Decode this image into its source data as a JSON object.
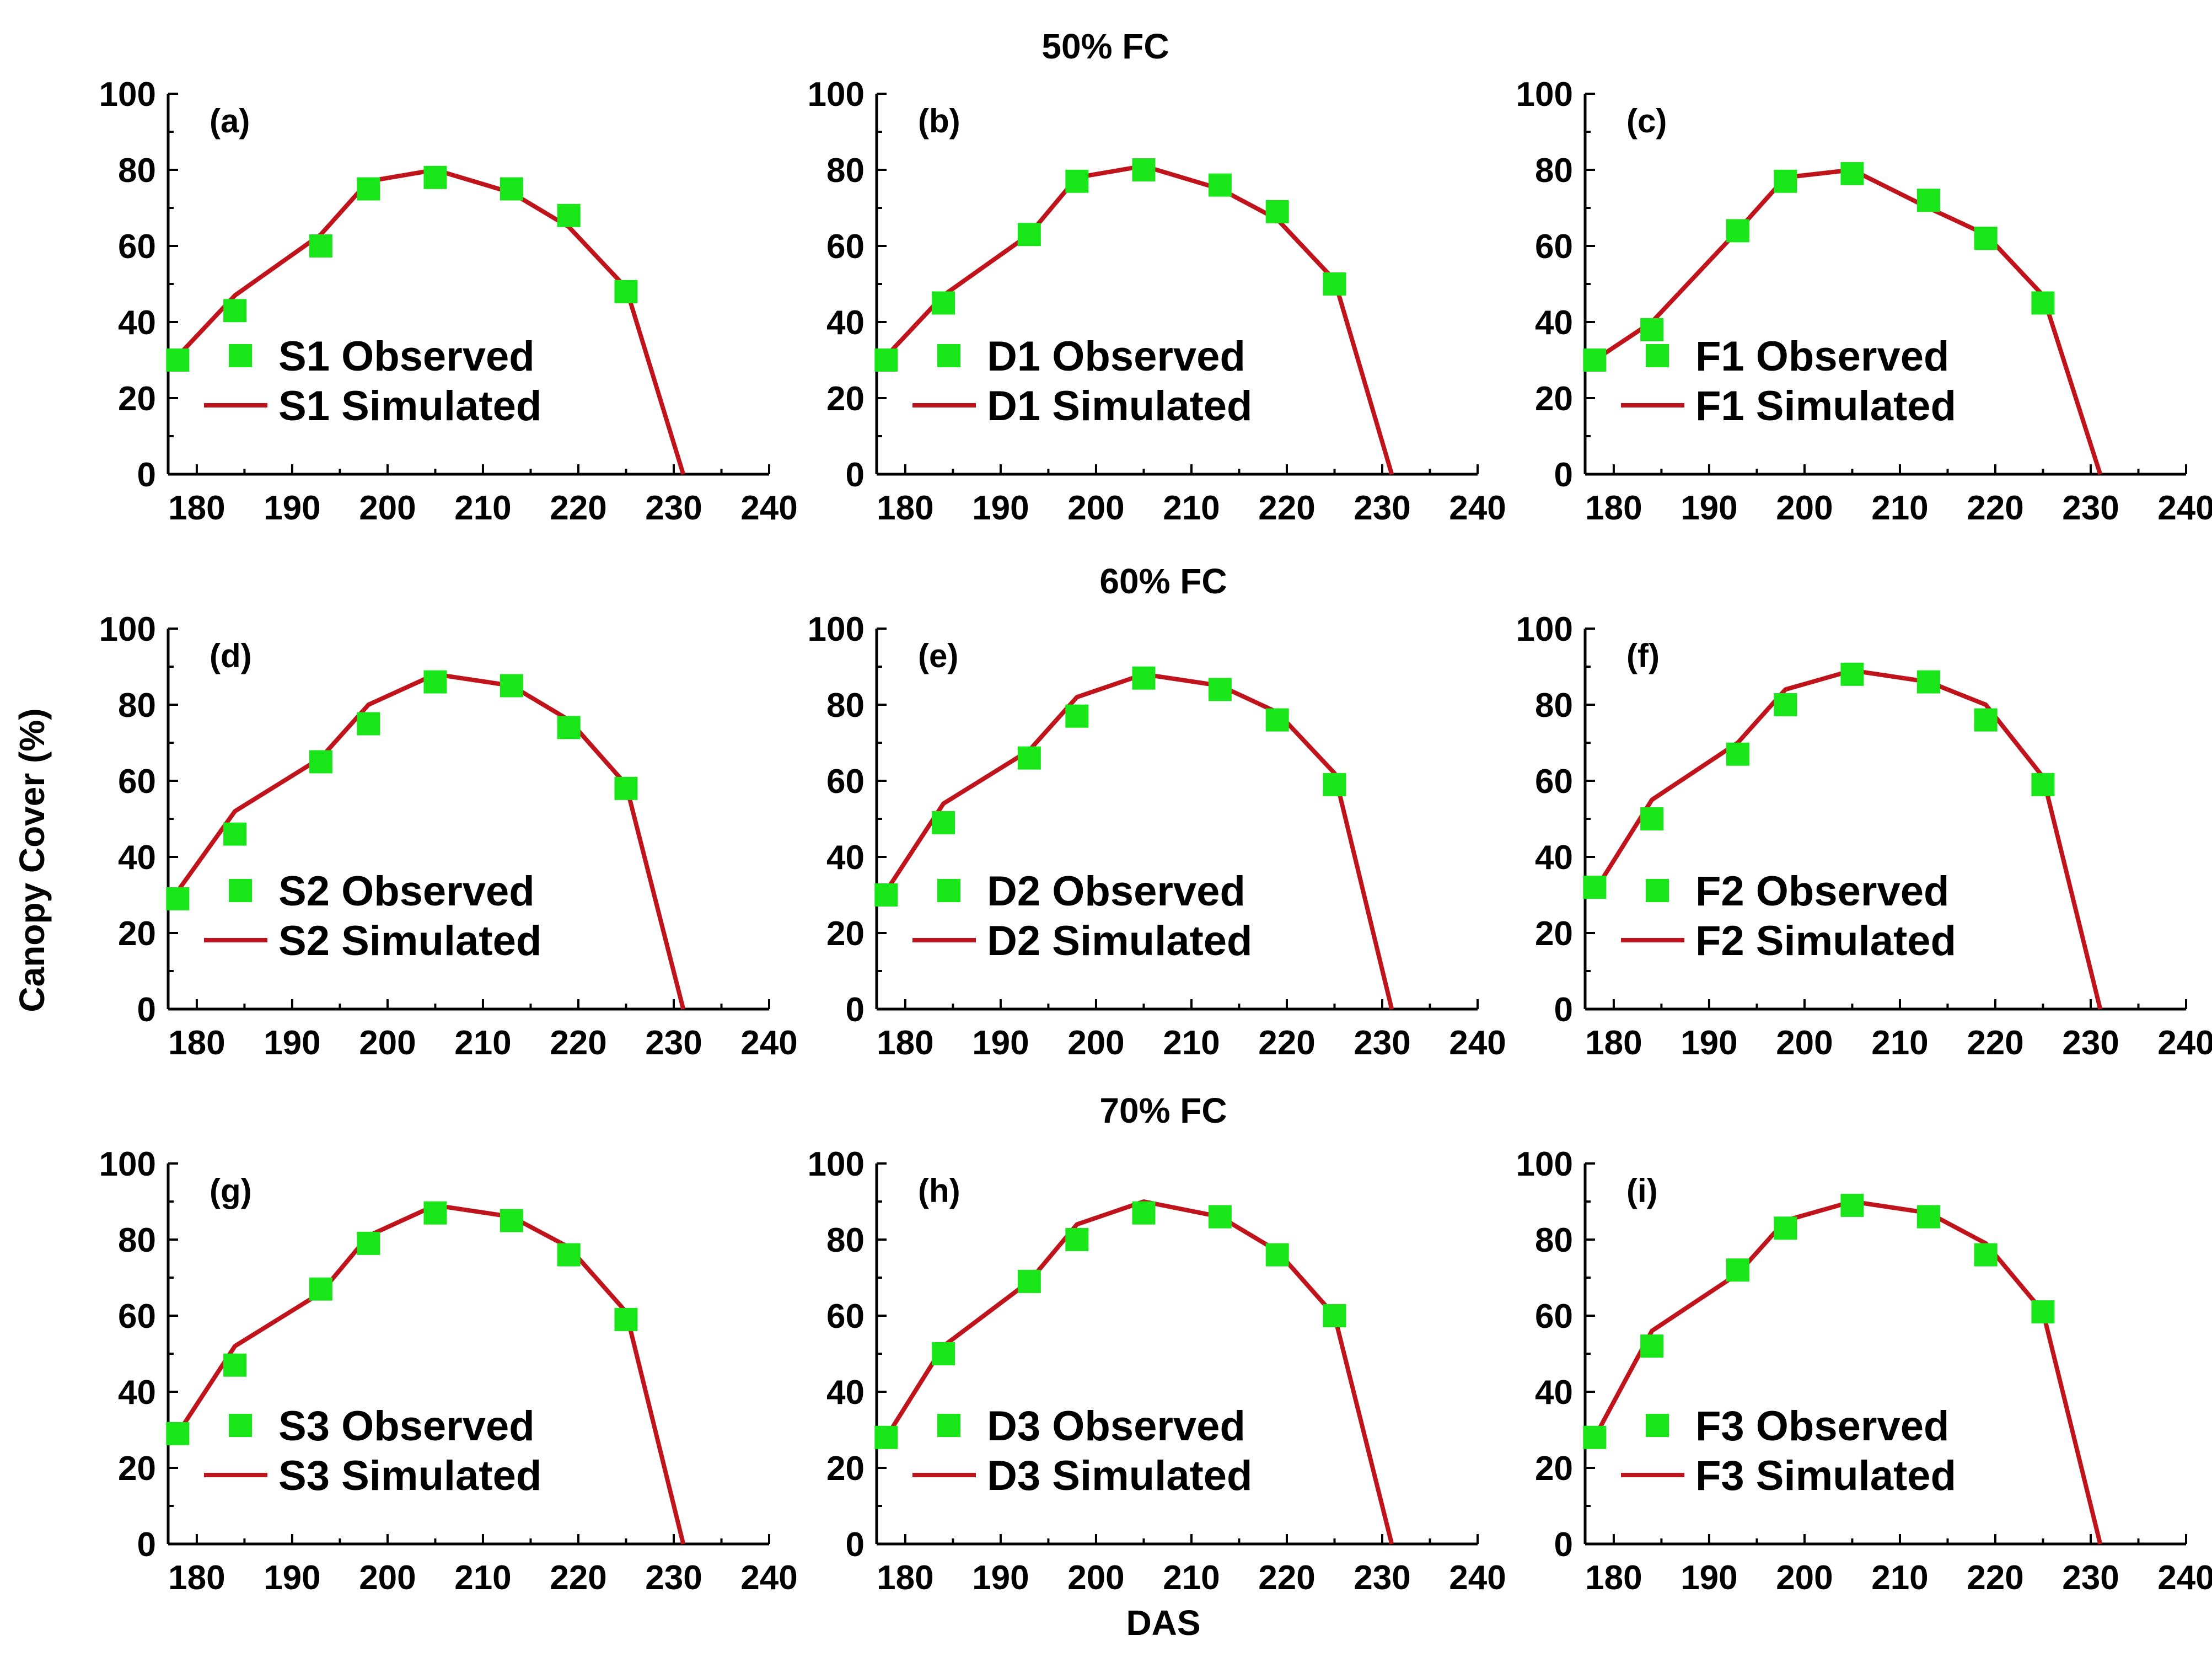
{
  "figure": {
    "xlabel": "DAS",
    "ylabel": "Canopy Cover (%)",
    "row_titles": [
      "50% FC",
      "60% FC",
      "70% FC"
    ]
  },
  "colors": {
    "observed": "#19E619",
    "simulated": "#C0141C",
    "axis": "#000000"
  },
  "chart_data": [
    {
      "type": "line",
      "panel": "(a)",
      "row_title": "50% FC",
      "xlim": [
        177,
        240
      ],
      "ylim": [
        0,
        100
      ],
      "xticks": [
        180,
        190,
        200,
        210,
        220,
        230,
        240
      ],
      "yticks": [
        0,
        20,
        40,
        60,
        80,
        100
      ],
      "series": [
        {
          "name": "S1 Observed",
          "kind": "scatter",
          "x": [
            178,
            184,
            193,
            198,
            205,
            213,
            219,
            225
          ],
          "y": [
            30,
            43,
            60,
            75,
            78,
            75,
            68,
            48
          ]
        },
        {
          "name": "S1 Simulated",
          "kind": "line",
          "x": [
            178,
            184,
            193,
            198,
            205,
            213,
            219,
            225,
            231
          ],
          "y": [
            31,
            47,
            63,
            77,
            80,
            74,
            65,
            49,
            0
          ]
        }
      ]
    },
    {
      "type": "line",
      "panel": "(b)",
      "row_title": "50% FC",
      "xlim": [
        177,
        240
      ],
      "ylim": [
        0,
        100
      ],
      "xticks": [
        180,
        190,
        200,
        210,
        220,
        230,
        240
      ],
      "yticks": [
        0,
        20,
        40,
        60,
        80,
        100
      ],
      "series": [
        {
          "name": "D1 Observed",
          "kind": "scatter",
          "x": [
            178,
            184,
            193,
            198,
            205,
            213,
            219,
            225
          ],
          "y": [
            30,
            45,
            63,
            77,
            80,
            76,
            69,
            50
          ]
        },
        {
          "name": "D1 Simulated",
          "kind": "line",
          "x": [
            178,
            184,
            193,
            198,
            205,
            213,
            219,
            225,
            231
          ],
          "y": [
            31,
            47,
            63,
            78,
            81,
            75,
            67,
            51,
            0
          ]
        }
      ]
    },
    {
      "type": "line",
      "panel": "(c)",
      "row_title": "50% FC",
      "xlim": [
        177,
        240
      ],
      "ylim": [
        0,
        100
      ],
      "xticks": [
        180,
        190,
        200,
        210,
        220,
        230,
        240
      ],
      "yticks": [
        0,
        20,
        40,
        60,
        80,
        100
      ],
      "series": [
        {
          "name": "F1 Observed",
          "kind": "scatter",
          "x": [
            178,
            184,
            193,
            198,
            205,
            213,
            219,
            225
          ],
          "y": [
            30,
            38,
            64,
            77,
            79,
            72,
            62,
            45
          ]
        },
        {
          "name": "F1 Simulated",
          "kind": "line",
          "x": [
            178,
            184,
            193,
            198,
            205,
            213,
            219,
            225,
            231
          ],
          "y": [
            30,
            40,
            64,
            78,
            80,
            70,
            63,
            47,
            0
          ]
        }
      ]
    },
    {
      "type": "line",
      "panel": "(d)",
      "row_title": "60% FC",
      "xlim": [
        177,
        240
      ],
      "ylim": [
        0,
        100
      ],
      "xticks": [
        180,
        190,
        200,
        210,
        220,
        230,
        240
      ],
      "yticks": [
        0,
        20,
        40,
        60,
        80,
        100
      ],
      "series": [
        {
          "name": "S2 Observed",
          "kind": "scatter",
          "x": [
            178,
            184,
            193,
            198,
            205,
            213,
            219,
            225
          ],
          "y": [
            29,
            46,
            65,
            75,
            86,
            85,
            74,
            58
          ]
        },
        {
          "name": "S2 Simulated",
          "kind": "line",
          "x": [
            178,
            184,
            193,
            198,
            205,
            213,
            219,
            225,
            231
          ],
          "y": [
            31,
            52,
            66,
            80,
            88,
            85,
            76,
            59,
            0
          ]
        }
      ]
    },
    {
      "type": "line",
      "panel": "(e)",
      "row_title": "60% FC",
      "xlim": [
        177,
        240
      ],
      "ylim": [
        0,
        100
      ],
      "xticks": [
        180,
        190,
        200,
        210,
        220,
        230,
        240
      ],
      "yticks": [
        0,
        20,
        40,
        60,
        80,
        100
      ],
      "series": [
        {
          "name": "D2 Observed",
          "kind": "scatter",
          "x": [
            178,
            184,
            193,
            198,
            205,
            213,
            219,
            225
          ],
          "y": [
            30,
            49,
            66,
            77,
            87,
            84,
            76,
            59
          ]
        },
        {
          "name": "D2 Simulated",
          "kind": "line",
          "x": [
            178,
            184,
            193,
            198,
            205,
            213,
            219,
            225,
            231
          ],
          "y": [
            31,
            54,
            68,
            82,
            88,
            85,
            78,
            62,
            0
          ]
        }
      ]
    },
    {
      "type": "line",
      "panel": "(f)",
      "row_title": "60% FC",
      "xlim": [
        177,
        240
      ],
      "ylim": [
        0,
        100
      ],
      "xticks": [
        180,
        190,
        200,
        210,
        220,
        230,
        240
      ],
      "yticks": [
        0,
        20,
        40,
        60,
        80,
        100
      ],
      "series": [
        {
          "name": "F2 Observed",
          "kind": "scatter",
          "x": [
            178,
            184,
            193,
            198,
            205,
            213,
            219,
            225
          ],
          "y": [
            32,
            50,
            67,
            80,
            88,
            86,
            76,
            59
          ]
        },
        {
          "name": "F2 Simulated",
          "kind": "line",
          "x": [
            178,
            184,
            193,
            198,
            205,
            213,
            219,
            225,
            231
          ],
          "y": [
            31,
            55,
            70,
            84,
            89,
            86,
            80,
            61,
            0
          ]
        }
      ]
    },
    {
      "type": "line",
      "panel": "(g)",
      "row_title": "70% FC",
      "xlim": [
        177,
        240
      ],
      "ylim": [
        0,
        100
      ],
      "xticks": [
        180,
        190,
        200,
        210,
        220,
        230,
        240
      ],
      "yticks": [
        0,
        20,
        40,
        60,
        80,
        100
      ],
      "series": [
        {
          "name": "S3 Observed",
          "kind": "scatter",
          "x": [
            178,
            184,
            193,
            198,
            205,
            213,
            219,
            225
          ],
          "y": [
            29,
            47,
            67,
            79,
            87,
            85,
            76,
            59
          ]
        },
        {
          "name": "S3 Simulated",
          "kind": "line",
          "x": [
            178,
            184,
            193,
            198,
            205,
            213,
            219,
            225,
            231
          ],
          "y": [
            29,
            52,
            66,
            81,
            89,
            86,
            78,
            61,
            0
          ]
        }
      ]
    },
    {
      "type": "line",
      "panel": "(h)",
      "row_title": "70% FC",
      "xlim": [
        177,
        240
      ],
      "ylim": [
        0,
        100
      ],
      "xticks": [
        180,
        190,
        200,
        210,
        220,
        230,
        240
      ],
      "yticks": [
        0,
        20,
        40,
        60,
        80,
        100
      ],
      "series": [
        {
          "name": "D3 Observed",
          "kind": "scatter",
          "x": [
            178,
            184,
            193,
            198,
            205,
            213,
            219,
            225
          ],
          "y": [
            28,
            50,
            69,
            80,
            87,
            86,
            76,
            60
          ]
        },
        {
          "name": "D3 Simulated",
          "kind": "line",
          "x": [
            178,
            184,
            193,
            198,
            205,
            213,
            219,
            225,
            231
          ],
          "y": [
            28,
            52,
            69,
            84,
            90,
            86,
            77,
            60,
            0
          ]
        }
      ]
    },
    {
      "type": "line",
      "panel": "(i)",
      "row_title": "70% FC",
      "xlim": [
        177,
        240
      ],
      "ylim": [
        0,
        100
      ],
      "xticks": [
        180,
        190,
        200,
        210,
        220,
        230,
        240
      ],
      "yticks": [
        0,
        20,
        40,
        60,
        80,
        100
      ],
      "series": [
        {
          "name": "F3 Observed",
          "kind": "scatter",
          "x": [
            178,
            184,
            193,
            198,
            205,
            213,
            219,
            225
          ],
          "y": [
            28,
            52,
            72,
            83,
            89,
            86,
            76,
            61
          ]
        },
        {
          "name": "F3 Simulated",
          "kind": "line",
          "x": [
            178,
            184,
            193,
            198,
            205,
            213,
            219,
            225,
            231
          ],
          "y": [
            28,
            56,
            71,
            85,
            90,
            87,
            79,
            61,
            0
          ]
        }
      ]
    }
  ]
}
